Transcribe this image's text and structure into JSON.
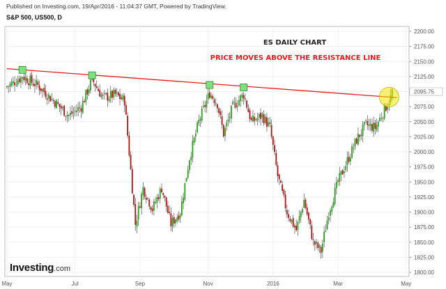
{
  "header": {
    "published": "Published on Investing.com, 19/Apr/2016 - 11:04:37 GMT, Powered by TradingView.",
    "symbol": "S&P 500, US500, D"
  },
  "brand": {
    "name": "Investing",
    "suffix": ".com"
  },
  "colors": {
    "up": "#26a017",
    "down": "#b01010",
    "resistance": "#e8181a",
    "title_red": "#e8181a",
    "highlight": "#f2e600",
    "marker": "#7ee07e"
  },
  "chart_data": {
    "type": "candlestick",
    "title": "ES DAILY CHART",
    "subtitle": "PRICE MOVES ABOVE THE RESISTANCE LINE",
    "ylim": [
      1800,
      2200
    ],
    "y_ticks": [
      "2200.00",
      "2175.00",
      "2150.00",
      "2125.00",
      "2100.00",
      "2075.00",
      "2050.00",
      "2025.00",
      "2000.00",
      "1975.00",
      "1950.00",
      "1925.00",
      "1900.00",
      "1875.00",
      "1850.00",
      "1825.00",
      "1800.00"
    ],
    "last_price": "2095.75",
    "x_ticks": [
      {
        "label": "May",
        "bar": 0
      },
      {
        "label": "Jul",
        "bar": 44
      },
      {
        "label": "Sep",
        "bar": 86
      },
      {
        "label": "Nov",
        "bar": 130
      },
      {
        "label": "2016",
        "bar": 172
      },
      {
        "label": "Mar",
        "bar": 214
      },
      {
        "label": "May",
        "bar": 258
      }
    ],
    "resistance_line": [
      {
        "bar": 0,
        "price": 2138
      },
      {
        "bar": 252,
        "price": 2090
      }
    ],
    "markers": [
      {
        "bar": 10,
        "price": 2136
      },
      {
        "bar": 55,
        "price": 2127
      },
      {
        "bar": 131,
        "price": 2111
      },
      {
        "bar": 153,
        "price": 2107
      }
    ],
    "highlight": {
      "bar": 247,
      "price": 2091
    },
    "path": [
      {
        "bar": 0,
        "price": 2108
      },
      {
        "bar": 10,
        "price": 2125
      },
      {
        "bar": 20,
        "price": 2110
      },
      {
        "bar": 30,
        "price": 2085
      },
      {
        "bar": 40,
        "price": 2060
      },
      {
        "bar": 48,
        "price": 2075
      },
      {
        "bar": 55,
        "price": 2120
      },
      {
        "bar": 62,
        "price": 2090
      },
      {
        "bar": 70,
        "price": 2095
      },
      {
        "bar": 76,
        "price": 2085
      },
      {
        "bar": 80,
        "price": 1970
      },
      {
        "bar": 83,
        "price": 1880
      },
      {
        "bar": 88,
        "price": 1940
      },
      {
        "bar": 94,
        "price": 1905
      },
      {
        "bar": 100,
        "price": 1940
      },
      {
        "bar": 106,
        "price": 1880
      },
      {
        "bar": 112,
        "price": 1900
      },
      {
        "bar": 118,
        "price": 1990
      },
      {
        "bar": 124,
        "price": 2050
      },
      {
        "bar": 131,
        "price": 2098
      },
      {
        "bar": 136,
        "price": 2080
      },
      {
        "bar": 140,
        "price": 2030
      },
      {
        "bar": 146,
        "price": 2075
      },
      {
        "bar": 153,
        "price": 2095
      },
      {
        "bar": 158,
        "price": 2050
      },
      {
        "bar": 165,
        "price": 2060
      },
      {
        "bar": 170,
        "price": 2040
      },
      {
        "bar": 175,
        "price": 1960
      },
      {
        "bar": 181,
        "price": 1900
      },
      {
        "bar": 187,
        "price": 1870
      },
      {
        "bar": 192,
        "price": 1920
      },
      {
        "bar": 198,
        "price": 1850
      },
      {
        "bar": 203,
        "price": 1835
      },
      {
        "bar": 208,
        "price": 1900
      },
      {
        "bar": 214,
        "price": 1950
      },
      {
        "bar": 220,
        "price": 1985
      },
      {
        "bar": 226,
        "price": 2020
      },
      {
        "bar": 232,
        "price": 2045
      },
      {
        "bar": 238,
        "price": 2040
      },
      {
        "bar": 244,
        "price": 2070
      },
      {
        "bar": 248,
        "price": 2090
      }
    ]
  }
}
